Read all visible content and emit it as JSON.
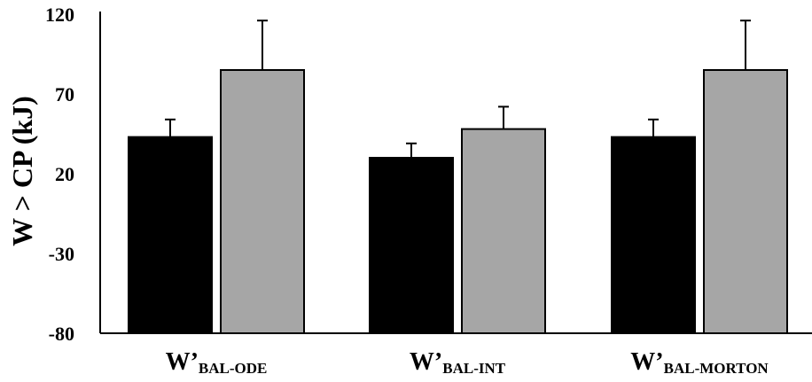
{
  "chart_data": {
    "type": "bar",
    "categories": [
      {
        "main": "W’",
        "sub": "BAL-ODE"
      },
      {
        "main": "W’",
        "sub": "BAL-INT"
      },
      {
        "main": "W’",
        "sub": "BAL-MORTON"
      }
    ],
    "series": [
      {
        "values": [
          43,
          30,
          43
        ],
        "errors": [
          11,
          9,
          11
        ],
        "color": "#000000"
      },
      {
        "values": [
          85,
          48,
          85
        ],
        "errors": [
          31,
          14,
          31
        ],
        "color": "#a6a6a6"
      }
    ],
    "ylabel": "W > CP (kJ)",
    "ylim": [
      -80,
      120
    ],
    "yticks": [
      "120",
      "70",
      "20",
      "-30",
      "-80"
    ],
    "grid": false,
    "legend": "none"
  }
}
